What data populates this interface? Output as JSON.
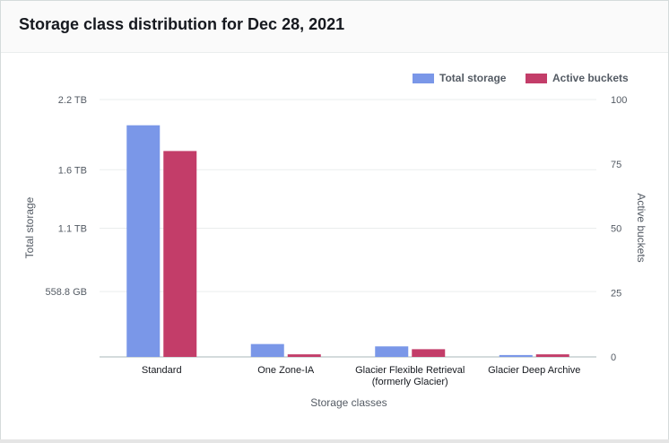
{
  "panel": {
    "title": "Storage class distribution for Dec 28, 2021"
  },
  "legend": [
    {
      "label": "Total storage",
      "color": "#7a97e8"
    },
    {
      "label": "Active buckets",
      "color": "#c33d69"
    }
  ],
  "chart_data": {
    "type": "bar",
    "categories": [
      "Standard",
      "One Zone-IA",
      "Glacier Flexible Retrieval (formerly Glacier)",
      "Glacier Deep Archive"
    ],
    "category_tick_lines": [
      [
        "Standard"
      ],
      [
        "One Zone-IA"
      ],
      [
        "Glacier Flexible Retrieval",
        "(formerly Glacier)"
      ],
      [
        "Glacier Deep Archive"
      ]
    ],
    "series": [
      {
        "name": "Total storage",
        "axis": "left",
        "unit": "TB",
        "color": "#7a97e8",
        "values": [
          1.98,
          0.11,
          0.09,
          0.016
        ]
      },
      {
        "name": "Active buckets",
        "axis": "right",
        "color": "#c33d69",
        "values": [
          80,
          1,
          3,
          1
        ]
      }
    ],
    "xlabel": "Storage classes",
    "ylabel_left": "Total storage",
    "ylabel_right": "Active buckets",
    "left_ticks": [
      "2.2 TB",
      "1.6 TB",
      "1.1 TB",
      "558.8 GB"
    ],
    "left_tick_values": [
      2.2,
      1.6,
      1.1,
      0.5588
    ],
    "ylim_left": [
      0,
      2.2
    ],
    "right_ticks": [
      "100",
      "75",
      "50",
      "25",
      "0"
    ],
    "right_tick_values": [
      100,
      75,
      50,
      25,
      0
    ],
    "ylim_right": [
      0,
      100
    ],
    "grid": true,
    "legend_position": "top-right"
  }
}
